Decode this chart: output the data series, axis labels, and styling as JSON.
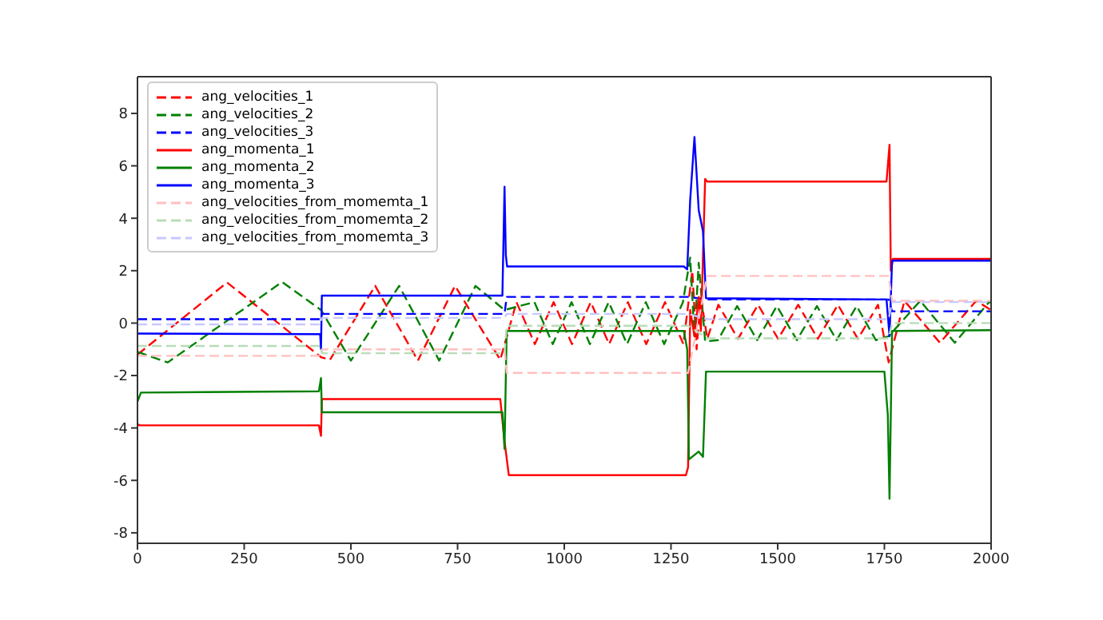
{
  "chart_data": {
    "type": "line",
    "xlim": [
      0,
      2000
    ],
    "xticks": [
      0,
      250,
      500,
      750,
      1000,
      1250,
      1500,
      1750,
      2000
    ],
    "ylim": [
      -8.4,
      9.4
    ],
    "yticks": [
      -8,
      -6,
      -4,
      -2,
      0,
      2,
      4,
      6,
      8
    ],
    "legend": "top left",
    "series": [
      {
        "name": "ang_velocities_1",
        "color": "#ff0000",
        "line_style": "dashed",
        "x": [
          0,
          210,
          430,
          451,
          557,
          657,
          744,
          850,
          888,
          931,
          975,
          1018,
          1062,
          1105,
          1149,
          1192,
          1236,
          1279,
          1300,
          1310,
          1320,
          1335,
          1361,
          1407,
          1454,
          1501,
          1548,
          1594,
          1641,
          1688,
          1735,
          1760,
          1797,
          1880,
          1965,
          2000
        ],
        "values": [
          -1.2,
          1.55,
          -1.3,
          -1.4,
          1.42,
          -1.43,
          1.42,
          -1.4,
          0.8,
          -0.8,
          0.8,
          -0.8,
          0.8,
          -0.8,
          0.8,
          -0.8,
          0.8,
          -0.8,
          2.0,
          -1.0,
          1.0,
          -0.6,
          0.7,
          -0.6,
          0.7,
          -0.6,
          0.7,
          -0.6,
          0.7,
          -0.6,
          0.7,
          -1.5,
          0.85,
          -0.75,
          0.85,
          0.5
        ]
      },
      {
        "name": "ang_velocities_2",
        "color": "#008000",
        "line_style": "dashed",
        "x": [
          0,
          71,
          339,
          430,
          500,
          613,
          707,
          792,
          860,
          930,
          973,
          1017,
          1060,
          1104,
          1147,
          1191,
          1234,
          1278,
          1295,
          1305,
          1315,
          1330,
          1360,
          1405,
          1452,
          1498,
          1545,
          1592,
          1638,
          1685,
          1730,
          1760,
          1834,
          1915,
          1995,
          2000
        ],
        "values": [
          -1.1,
          -1.5,
          1.57,
          0.5,
          -1.43,
          1.42,
          -1.43,
          1.42,
          0.5,
          0.8,
          -0.8,
          0.8,
          -0.8,
          0.8,
          -0.8,
          0.8,
          -0.8,
          0.8,
          2.5,
          -0.5,
          2.3,
          -0.7,
          -0.65,
          0.65,
          -0.65,
          0.65,
          -0.65,
          0.65,
          -0.65,
          0.65,
          -0.65,
          -0.5,
          0.85,
          -0.75,
          0.8,
          0.78
        ]
      },
      {
        "name": "ang_velocities_3",
        "color": "#0000ff",
        "line_style": "dashed",
        "x": [
          0,
          430,
          432,
          860,
          865,
          1290,
          1335,
          1760,
          1768,
          2000
        ],
        "values": [
          0.15,
          0.15,
          0.35,
          0.35,
          1.0,
          1.0,
          0.9,
          0.9,
          0.45,
          0.45
        ]
      },
      {
        "name": "ang_momenta_1",
        "color": "#ff0000",
        "line_style": "solid",
        "x": [
          0,
          5,
          425,
          430,
          432,
          850,
          860,
          870,
          1285,
          1290,
          1295,
          1305,
          1315,
          1320,
          1330,
          1335,
          1755,
          1762,
          1765,
          1770,
          2000
        ],
        "values": [
          -3.85,
          -3.9,
          -3.9,
          -4.3,
          -2.9,
          -2.9,
          -4.5,
          -5.8,
          -5.8,
          -5.5,
          0.5,
          -0.5,
          1.0,
          -0.3,
          5.5,
          5.4,
          5.4,
          6.8,
          2.0,
          2.45,
          2.45
        ]
      },
      {
        "name": "ang_momenta_2",
        "color": "#008000",
        "line_style": "solid",
        "x": [
          0,
          8,
          425,
          430,
          432,
          855,
          860,
          865,
          1280,
          1288,
          1292,
          1315,
          1325,
          1332,
          1750,
          1758,
          1762,
          1768,
          2000
        ],
        "values": [
          -3.0,
          -2.65,
          -2.6,
          -2.1,
          -3.4,
          -3.4,
          -4.8,
          -0.3,
          -0.3,
          -1.0,
          -5.2,
          -4.9,
          -5.1,
          -1.85,
          -1.85,
          -3.5,
          -6.7,
          -0.3,
          -0.27
        ]
      },
      {
        "name": "ang_momenta_3",
        "color": "#0000ff",
        "line_style": "solid",
        "x": [
          0,
          428,
          430,
          432,
          855,
          860,
          863,
          866,
          1280,
          1288,
          1295,
          1305,
          1315,
          1325,
          1332,
          1755,
          1762,
          1768,
          2000
        ],
        "values": [
          -0.4,
          -0.42,
          -1.0,
          1.05,
          1.05,
          5.2,
          2.6,
          2.16,
          2.16,
          2.05,
          4.7,
          7.1,
          4.3,
          3.5,
          0.95,
          0.9,
          -0.5,
          2.38,
          2.38
        ]
      },
      {
        "name": "ang_velocities_from_momemta_1",
        "color": "#ffc0c0",
        "line_style": "dashed",
        "x": [
          0,
          430,
          432,
          860,
          865,
          1290,
          1335,
          1760,
          1768,
          2000
        ],
        "values": [
          -1.25,
          -1.25,
          -1.0,
          -1.0,
          -1.9,
          -1.9,
          1.8,
          1.8,
          0.85,
          0.85
        ]
      },
      {
        "name": "ang_velocities_from_momemta_2",
        "color": "#b8dcb8",
        "line_style": "dashed",
        "x": [
          0,
          430,
          432,
          860,
          865,
          1290,
          1335,
          1760,
          1768,
          2000
        ],
        "values": [
          -0.87,
          -0.87,
          -1.15,
          -1.15,
          -0.1,
          -0.1,
          -0.58,
          -0.58,
          0.0,
          0.0
        ]
      },
      {
        "name": "ang_velocities_from_momemta_3",
        "color": "#c8c8ff",
        "line_style": "dashed",
        "x": [
          0,
          430,
          432,
          860,
          865,
          1290,
          1335,
          1760,
          1768,
          2000
        ],
        "values": [
          -0.05,
          -0.05,
          0.2,
          0.2,
          0.35,
          0.35,
          0.15,
          0.15,
          0.8,
          0.8
        ]
      }
    ]
  }
}
